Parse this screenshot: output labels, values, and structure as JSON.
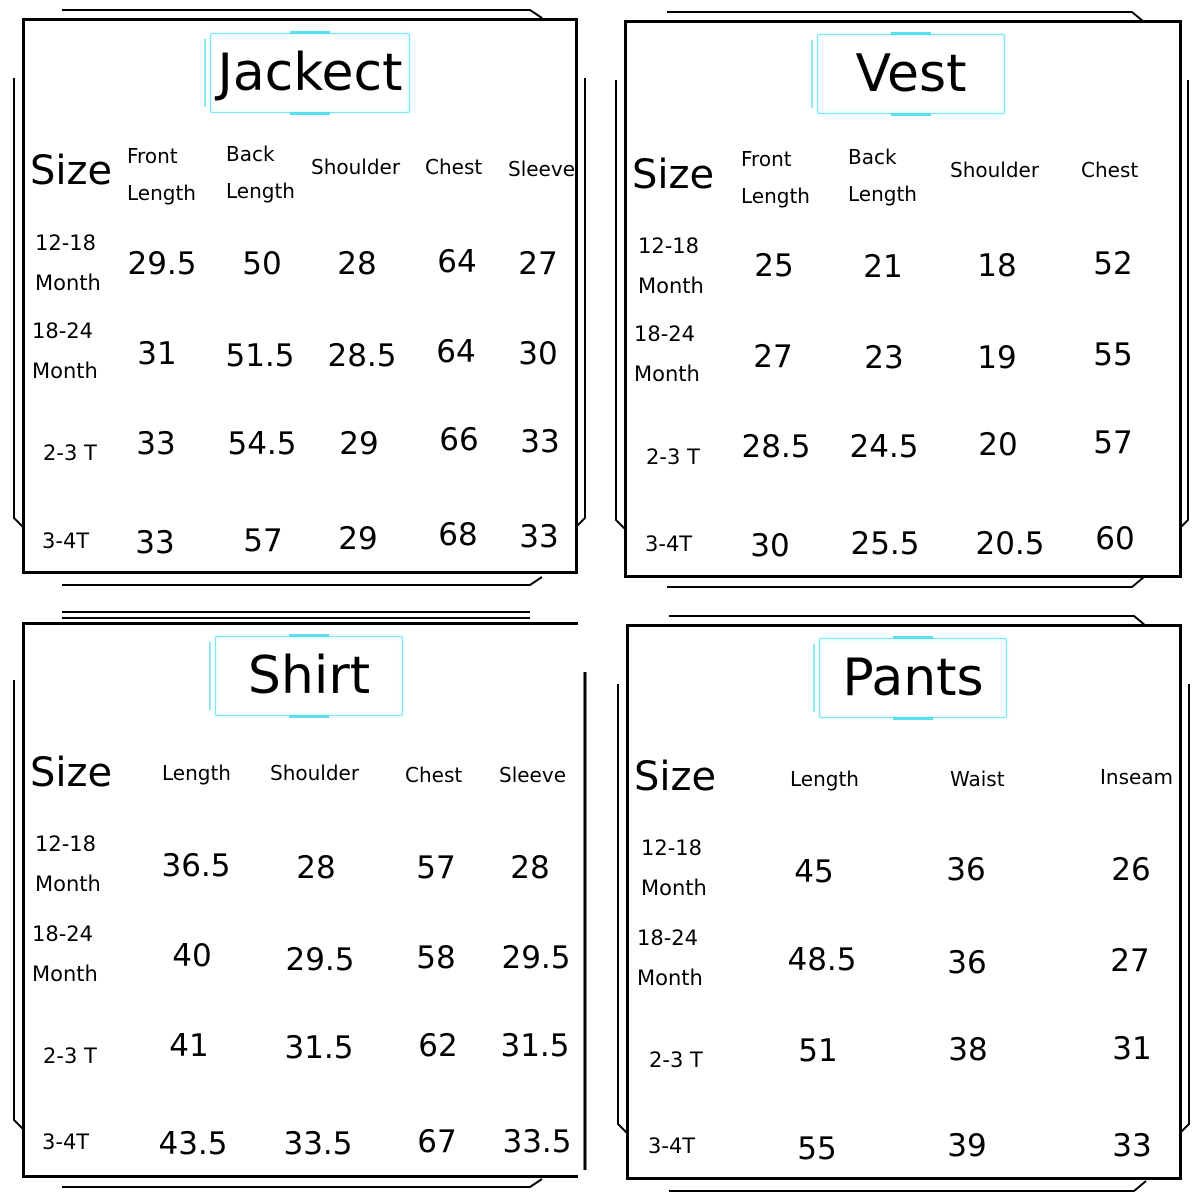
{
  "charts": [
    {
      "title": "Jackect",
      "size_label": "Size",
      "columns": [
        "Front Length",
        "Back Length",
        "Shoulder",
        "Chest",
        "Sleeve"
      ],
      "rows": [
        {
          "size": "12-18 Month",
          "values": [
            "29.5",
            "50",
            "28",
            "64",
            "27"
          ]
        },
        {
          "size": "18-24 Month",
          "values": [
            "31",
            "51.5",
            "28.5",
            "64",
            "30"
          ]
        },
        {
          "size": "2-3 T",
          "values": [
            "33",
            "54.5",
            "29",
            "66",
            "33"
          ]
        },
        {
          "size": "3-4T",
          "values": [
            "33",
            "57",
            "29",
            "68",
            "33"
          ]
        }
      ]
    },
    {
      "title": "Vest",
      "size_label": "Size",
      "columns": [
        "Front Length",
        "Back Length",
        "Shoulder",
        "Chest"
      ],
      "rows": [
        {
          "size": "12-18 Month",
          "values": [
            "25",
            "21",
            "18",
            "52"
          ]
        },
        {
          "size": "18-24 Month",
          "values": [
            "27",
            "23",
            "19",
            "55"
          ]
        },
        {
          "size": "2-3 T",
          "values": [
            "28.5",
            "24.5",
            "20",
            "57"
          ]
        },
        {
          "size": "3-4T",
          "values": [
            "30",
            "25.5",
            "20.5",
            "60"
          ]
        }
      ]
    },
    {
      "title": "Shirt",
      "size_label": "Size",
      "columns": [
        "Length",
        "Shoulder",
        "Chest",
        "Sleeve"
      ],
      "rows": [
        {
          "size": "12-18 Month",
          "values": [
            "36.5",
            "28",
            "57",
            "28"
          ]
        },
        {
          "size": "18-24 Month",
          "values": [
            "40",
            "29.5",
            "58",
            "29.5"
          ]
        },
        {
          "size": "2-3 T",
          "values": [
            "41",
            "31.5",
            "62",
            "31.5"
          ]
        },
        {
          "size": "3-4T",
          "values": [
            "43.5",
            "33.5",
            "67",
            "33.5"
          ]
        }
      ]
    },
    {
      "title": "Pants",
      "size_label": "Size",
      "columns": [
        "Length",
        "Waist",
        "Inseam"
      ],
      "rows": [
        {
          "size": "12-18 Month",
          "values": [
            "45",
            "36",
            "26"
          ]
        },
        {
          "size": "18-24 Month",
          "values": [
            "48.5",
            "36",
            "27"
          ]
        },
        {
          "size": "2-3 T",
          "values": [
            "51",
            "38",
            "31"
          ]
        },
        {
          "size": "3-4T",
          "values": [
            "55",
            "39",
            "33"
          ]
        }
      ]
    }
  ]
}
